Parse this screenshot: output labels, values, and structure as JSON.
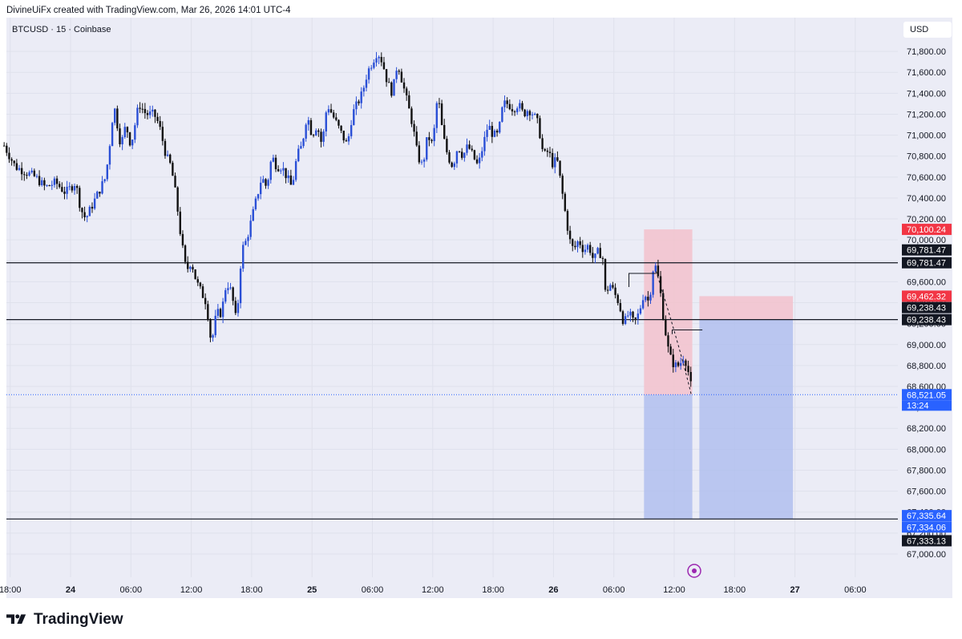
{
  "header": {
    "attribution": "DivineUiFx created with TradingView.com, Mar 26, 2026 14:01 UTC-4"
  },
  "symbol_line": "BTCUSD · 15 · Coinbase",
  "currency": "USD",
  "footer": {
    "brand": "TradingView"
  },
  "colors": {
    "background": "#ebecf6",
    "bull_candle": "#2a4fd6",
    "bear_candle": "#111111",
    "stop_zone": "#f3c2cc",
    "target_zone": "#aab9ee",
    "label_red": "#f23645",
    "label_black": "#131722",
    "label_blue": "#2962ff"
  },
  "chart_data": {
    "type": "candlestick",
    "ylabel": "USD",
    "ylim": [
      66900,
      72100
    ],
    "y_ticks": [
      "67,000.00",
      "67,200.00",
      "67,400.00",
      "67,600.00",
      "67,800.00",
      "68,000.00",
      "68,200.00",
      "68,400.00",
      "68,600.00",
      "68,800.00",
      "69,000.00",
      "69,200.00",
      "69,400.00",
      "69,600.00",
      "69,800.00",
      "70,000.00",
      "70,200.00",
      "70,400.00",
      "70,600.00",
      "70,800.00",
      "71,000.00",
      "71,200.00",
      "71,400.00",
      "71,600.00",
      "71,800.00"
    ],
    "y_tick_values": [
      67000,
      67200,
      67400,
      67600,
      67800,
      68000,
      68200,
      68400,
      68600,
      68800,
      69000,
      69200,
      69400,
      69600,
      69800,
      70000,
      70200,
      70400,
      70600,
      70800,
      71000,
      71200,
      71400,
      71600,
      71800
    ],
    "x_ticks": [
      {
        "label": "18:00",
        "t": -6,
        "bold": false
      },
      {
        "label": "24",
        "t": 0,
        "bold": true
      },
      {
        "label": "06:00",
        "t": 6,
        "bold": false
      },
      {
        "label": "12:00",
        "t": 12,
        "bold": false
      },
      {
        "label": "18:00",
        "t": 18,
        "bold": false
      },
      {
        "label": "25",
        "t": 24,
        "bold": true
      },
      {
        "label": "06:00",
        "t": 30,
        "bold": false
      },
      {
        "label": "12:00",
        "t": 36,
        "bold": false
      },
      {
        "label": "18:00",
        "t": 42,
        "bold": false
      },
      {
        "label": "26",
        "t": 48,
        "bold": true
      },
      {
        "label": "06:00",
        "t": 54,
        "bold": false
      },
      {
        "label": "12:00",
        "t": 60,
        "bold": false
      },
      {
        "label": "18:00",
        "t": 66,
        "bold": false
      },
      {
        "label": "27",
        "t": 72,
        "bold": true
      },
      {
        "label": "06:00",
        "t": 78,
        "bold": false
      }
    ],
    "price_path": [
      [
        -6.6,
        70900
      ],
      [
        -5.5,
        70700
      ],
      [
        -4.5,
        70650
      ],
      [
        -3.5,
        70600
      ],
      [
        -2.5,
        70500
      ],
      [
        -1.5,
        70550
      ],
      [
        -0.5,
        70450
      ],
      [
        0.5,
        70550
      ],
      [
        1.0,
        70300
      ],
      [
        1.5,
        70200
      ],
      [
        2.5,
        70400
      ],
      [
        3.5,
        70600
      ],
      [
        4.0,
        71000
      ],
      [
        4.3,
        71300
      ],
      [
        5.0,
        70900
      ],
      [
        5.5,
        71100
      ],
      [
        6.0,
        70900
      ],
      [
        6.8,
        71300
      ],
      [
        7.5,
        71200
      ],
      [
        8.3,
        71200
      ],
      [
        8.8,
        71100
      ],
      [
        9.5,
        70800
      ],
      [
        10.0,
        70700
      ],
      [
        10.5,
        70400
      ],
      [
        11.0,
        70000
      ],
      [
        11.5,
        69700
      ],
      [
        12.0,
        69800
      ],
      [
        12.5,
        69600
      ],
      [
        13.0,
        69500
      ],
      [
        13.5,
        69400
      ],
      [
        14.0,
        69000
      ],
      [
        14.5,
        69300
      ],
      [
        15.0,
        69300
      ],
      [
        15.5,
        69600
      ],
      [
        16.0,
        69500
      ],
      [
        16.5,
        69200
      ],
      [
        17.0,
        69900
      ],
      [
        17.5,
        70000
      ],
      [
        18.0,
        70200
      ],
      [
        18.5,
        70400
      ],
      [
        19.0,
        70600
      ],
      [
        19.5,
        70500
      ],
      [
        20.0,
        70800
      ],
      [
        20.5,
        70700
      ],
      [
        21.0,
        70700
      ],
      [
        21.5,
        70600
      ],
      [
        22.0,
        70500
      ],
      [
        22.5,
        70800
      ],
      [
        23.0,
        70900
      ],
      [
        23.5,
        71200
      ],
      [
        24.0,
        71000
      ],
      [
        24.5,
        71100
      ],
      [
        25.0,
        70900
      ],
      [
        25.5,
        71300
      ],
      [
        26.0,
        71200
      ],
      [
        26.5,
        71100
      ],
      [
        27.0,
        71000
      ],
      [
        27.5,
        70900
      ],
      [
        28.0,
        71200
      ],
      [
        28.5,
        71300
      ],
      [
        29.0,
        71400
      ],
      [
        29.5,
        71600
      ],
      [
        30.0,
        71700
      ],
      [
        30.5,
        71800
      ],
      [
        31.0,
        71700
      ],
      [
        31.5,
        71500
      ],
      [
        32.0,
        71400
      ],
      [
        32.5,
        71700
      ],
      [
        33.0,
        71500
      ],
      [
        33.5,
        71300
      ],
      [
        34.0,
        71100
      ],
      [
        34.5,
        70800
      ],
      [
        35.0,
        70700
      ],
      [
        35.5,
        71000
      ],
      [
        36.0,
        70900
      ],
      [
        36.5,
        71400
      ],
      [
        37.0,
        71000
      ],
      [
        37.5,
        70800
      ],
      [
        38.0,
        70700
      ],
      [
        38.5,
        70900
      ],
      [
        39.0,
        70800
      ],
      [
        39.5,
        70900
      ],
      [
        40.0,
        70800
      ],
      [
        40.5,
        70700
      ],
      [
        41.0,
        70900
      ],
      [
        41.5,
        71100
      ],
      [
        42.0,
        71000
      ],
      [
        42.5,
        71000
      ],
      [
        43.0,
        71300
      ],
      [
        43.5,
        71300
      ],
      [
        44.0,
        71250
      ],
      [
        44.5,
        71300
      ],
      [
        45.0,
        71200
      ],
      [
        45.5,
        71250
      ],
      [
        46.0,
        71200
      ],
      [
        46.5,
        71100
      ],
      [
        47.0,
        70800
      ],
      [
        47.5,
        70850
      ],
      [
        48.0,
        70700
      ],
      [
        48.3,
        70800
      ],
      [
        48.8,
        70500
      ],
      [
        49.1,
        70300
      ],
      [
        49.6,
        70000
      ],
      [
        50.0,
        69900
      ],
      [
        50.5,
        70000
      ],
      [
        51.0,
        69900
      ],
      [
        51.5,
        69950
      ],
      [
        52.0,
        69800
      ],
      [
        52.5,
        69900
      ],
      [
        53.0,
        69800
      ],
      [
        53.2,
        69400
      ],
      [
        53.5,
        69600
      ],
      [
        54.0,
        69500
      ],
      [
        54.5,
        69400
      ],
      [
        55.0,
        69200
      ],
      [
        55.5,
        69300
      ],
      [
        56.0,
        69200
      ],
      [
        56.5,
        69300
      ],
      [
        57.0,
        69500
      ],
      [
        57.5,
        69400
      ],
      [
        58.0,
        69800
      ],
      [
        58.5,
        69600
      ],
      [
        59.0,
        69200
      ],
      [
        59.5,
        68900
      ],
      [
        60.0,
        68800
      ],
      [
        60.5,
        68800
      ],
      [
        61.0,
        68900
      ],
      [
        61.5,
        68700
      ],
      [
        61.8,
        68521
      ]
    ],
    "horizontal_levels": [
      69781.47,
      69238.43,
      67334.06
    ],
    "current_price": 68521.05,
    "countdown": "13:24",
    "positions": [
      {
        "t_start": 57.0,
        "t_end": 61.8,
        "entry": 68521.05,
        "stop": 70100.24,
        "target": 67335.64
      },
      {
        "t_start": 62.5,
        "t_end": 71.8,
        "entry": 69238.43,
        "stop": 69462.32,
        "target": 67333.13
      }
    ],
    "price_labels": [
      {
        "text": "70,100.24",
        "value": 70100.24,
        "color": "red"
      },
      {
        "text": "69,781.47",
        "value": 69781.47,
        "color": "black",
        "offset": -16
      },
      {
        "text": "69,781.47",
        "value": 69781.47,
        "color": "black",
        "offset": 0
      },
      {
        "text": "69,462.32",
        "value": 69462.32,
        "color": "red"
      },
      {
        "text": "69,238.43",
        "value": 69238.43,
        "color": "black",
        "offset": -15
      },
      {
        "text": "69,238.43",
        "value": 69238.43,
        "color": "black",
        "offset": 0
      },
      {
        "text": "68,521.05",
        "value": 68521.05,
        "color": "blue"
      },
      {
        "text": "67,335.64",
        "value": 67335.64,
        "color": "blue",
        "offset": -4
      },
      {
        "text": "67,334.06",
        "value": 67334.06,
        "color": "blue",
        "offset": 10
      },
      {
        "text": "67,333.13",
        "value": 67333.13,
        "color": "black",
        "offset": 27
      }
    ]
  }
}
